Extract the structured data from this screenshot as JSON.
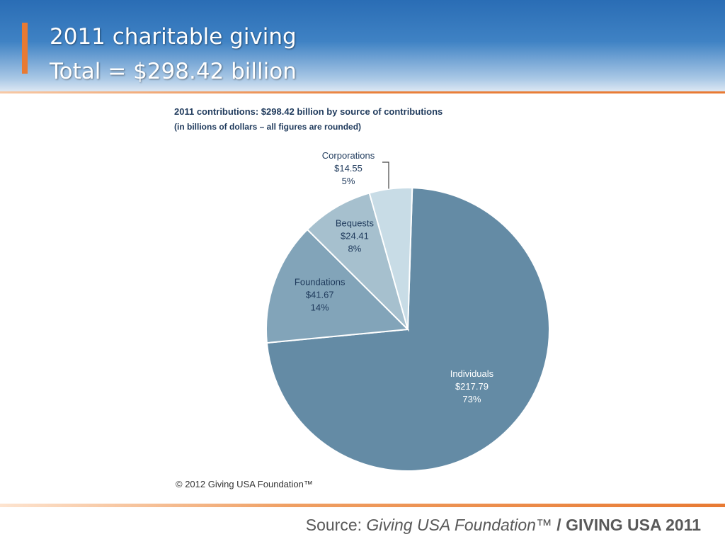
{
  "slide": {
    "title_line_1": "2011 charitable giving",
    "title_line_2": "Total = $298.42 billion",
    "copyright": "© 2012 Giving USA Foundation™",
    "source_prefix": "Source: ",
    "source_publisher": "Giving USA Foundation™",
    "source_separator": " / ",
    "source_report": "GIVING USA 2011"
  },
  "colors": {
    "header_blue": "#2a6db5",
    "accent_orange": "#e87a33",
    "label_dark": "#1f3a5c",
    "label_light": "#ffffff"
  },
  "chart_data": {
    "type": "pie",
    "title": "2011 contributions: $298.42 billion by source of contributions",
    "subtitle": "(in billions of dollars – all figures are rounded)",
    "total": 298.42,
    "slices": [
      {
        "name": "Individuals",
        "value": 217.79,
        "value_label": "$217.79",
        "percent_label": "73%",
        "color": "#648ba5"
      },
      {
        "name": "Foundations",
        "value": 41.67,
        "value_label": "$41.67",
        "percent_label": "14%",
        "color": "#82a4b9"
      },
      {
        "name": "Bequests",
        "value": 24.41,
        "value_label": "$24.41",
        "percent_label": "8%",
        "color": "#a6c0ce"
      },
      {
        "name": "Corporations",
        "value": 14.55,
        "value_label": "$14.55",
        "percent_label": "5%",
        "color": "#c8dce6"
      }
    ]
  }
}
